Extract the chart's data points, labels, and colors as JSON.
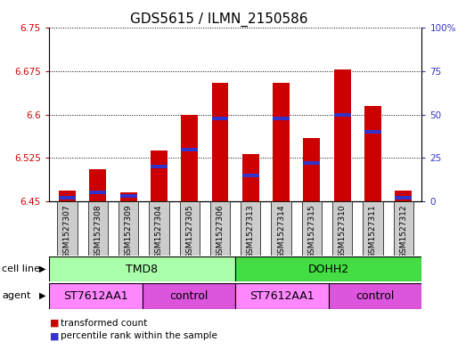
{
  "title": "GDS5615 / ILMN_2150586",
  "samples": [
    "GSM1527307",
    "GSM1527308",
    "GSM1527309",
    "GSM1527304",
    "GSM1527305",
    "GSM1527306",
    "GSM1527313",
    "GSM1527314",
    "GSM1527315",
    "GSM1527310",
    "GSM1527311",
    "GSM1527312"
  ],
  "transformed_counts": [
    6.468,
    6.505,
    6.465,
    6.538,
    6.6,
    6.655,
    6.532,
    6.655,
    6.56,
    6.678,
    6.615,
    6.468
  ],
  "percentile_ranks": [
    2,
    5,
    3,
    20,
    30,
    48,
    15,
    48,
    22,
    50,
    40,
    2
  ],
  "ymin": 6.45,
  "ymax": 6.75,
  "yticks": [
    6.45,
    6.525,
    6.6,
    6.675,
    6.75
  ],
  "ytick_labels": [
    "6.45",
    "6.525",
    "6.6",
    "6.675",
    "6.75"
  ],
  "right_yticks": [
    0,
    25,
    50,
    75,
    100
  ],
  "right_ytick_labels": [
    "0",
    "25",
    "50",
    "75",
    "100%"
  ],
  "bar_color": "#cc0000",
  "percentile_color": "#3333cc",
  "cell_line_groups": [
    {
      "label": "TMD8",
      "start": 0,
      "end": 5,
      "color": "#aaffaa"
    },
    {
      "label": "DOHH2",
      "start": 6,
      "end": 11,
      "color": "#44dd44"
    }
  ],
  "agent_groups": [
    {
      "label": "ST7612AA1",
      "start": 0,
      "end": 2,
      "color": "#ff88ff"
    },
    {
      "label": "control",
      "start": 3,
      "end": 5,
      "color": "#dd55dd"
    },
    {
      "label": "ST7612AA1",
      "start": 6,
      "end": 8,
      "color": "#ff88ff"
    },
    {
      "label": "control",
      "start": 9,
      "end": 11,
      "color": "#dd55dd"
    }
  ],
  "legend_items": [
    {
      "label": "transformed count",
      "color": "#cc0000"
    },
    {
      "label": "percentile rank within the sample",
      "color": "#3333cc"
    }
  ],
  "bar_width": 0.55,
  "bg_color": "#ffffff",
  "grid_color": "#555555",
  "tick_label_color_left": "#cc0000",
  "tick_label_color_right": "#3333cc",
  "title_fontsize": 11,
  "tick_fontsize": 7.5,
  "sample_fontsize": 6.5
}
